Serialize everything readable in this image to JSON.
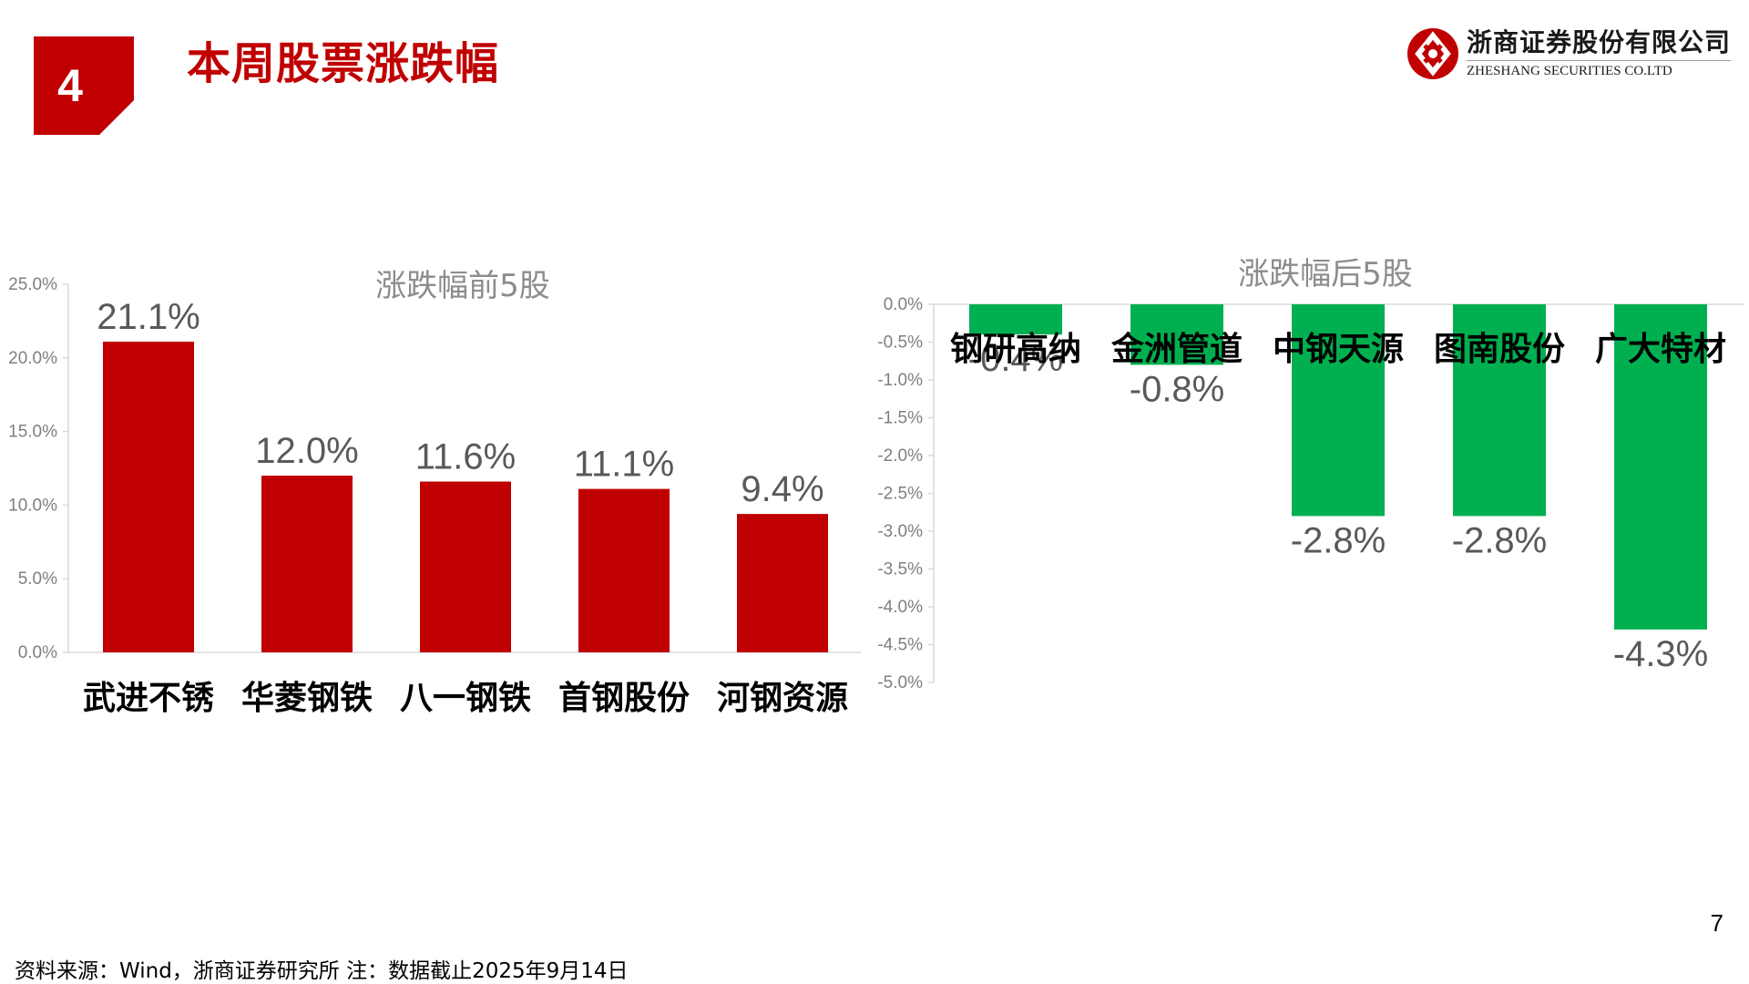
{
  "header": {
    "section_number": "4",
    "title": "本周股票涨跌幅",
    "logo_cn": "浙商证券股份有限公司",
    "logo_en": "ZHESHANG SECURITIES CO.LTD",
    "accent_color": "#c00000"
  },
  "chart_data": [
    {
      "type": "bar",
      "title": "涨跌幅前5股",
      "categories": [
        "武进不锈",
        "华菱钢铁",
        "八一钢铁",
        "首钢股份",
        "河钢资源"
      ],
      "values": [
        21.1,
        12.0,
        11.6,
        11.1,
        9.4
      ],
      "value_labels": [
        "21.1%",
        "12.0%",
        "11.6%",
        "11.1%",
        "9.4%"
      ],
      "ylim": [
        0,
        25
      ],
      "yticks": [
        "0.0%",
        "5.0%",
        "10.0%",
        "15.0%",
        "20.0%",
        "25.0%"
      ],
      "color": "#c00000",
      "grid": false
    },
    {
      "type": "bar",
      "title": "涨跌幅后5股",
      "categories": [
        "钢研高纳",
        "金洲管道",
        "中钢天源",
        "图南股份",
        "广大特材"
      ],
      "values": [
        -0.4,
        -0.8,
        -2.8,
        -2.8,
        -4.3
      ],
      "value_labels": [
        "-0.4%",
        "-0.8%",
        "-2.8%",
        "-2.8%",
        "-4.3%"
      ],
      "ylim": [
        -5,
        0
      ],
      "yticks": [
        "0.0%",
        "-0.5%",
        "-1.0%",
        "-1.5%",
        "-2.0%",
        "-2.5%",
        "-3.0%",
        "-3.5%",
        "-4.0%",
        "-4.5%",
        "-5.0%"
      ],
      "color": "#00b050",
      "grid": false
    }
  ],
  "footer": {
    "page_number": "7",
    "source": "资料来源：Wind，浙商证券研究所    注：数据截止2025年9月14日"
  }
}
